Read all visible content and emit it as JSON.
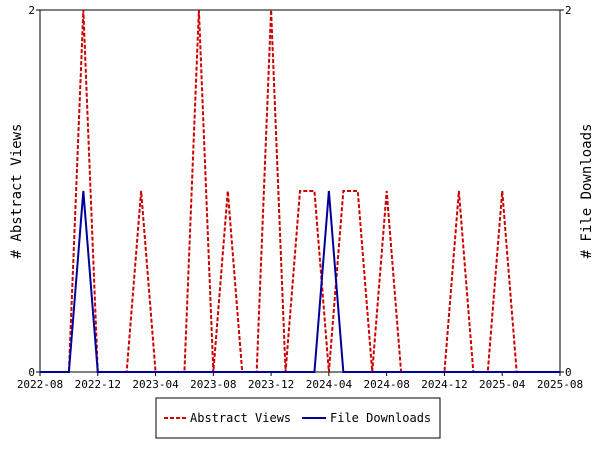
{
  "chart_data": {
    "type": "line",
    "title": "",
    "y_left_label": "# Abstract Views",
    "y_right_label": "# File Downloads",
    "y_left_range": [
      0,
      2
    ],
    "y_right_range": [
      0,
      2
    ],
    "y_left_ticks": [
      "0",
      "2"
    ],
    "y_right_ticks": [
      "0",
      "2"
    ],
    "x_range": [
      "2022-08",
      "2025-08"
    ],
    "x_ticks": [
      "2022-08",
      "2022-12",
      "2023-04",
      "2023-08",
      "2023-12",
      "2024-04",
      "2024-08",
      "2024-12",
      "2025-04",
      "2025-08"
    ],
    "grid": false,
    "legend_position": "bottom",
    "x": [
      "2022-08",
      "2022-09",
      "2022-10",
      "2022-11",
      "2022-12",
      "2023-01",
      "2023-02",
      "2023-03",
      "2023-04",
      "2023-05",
      "2023-06",
      "2023-07",
      "2023-08",
      "2023-09",
      "2023-10",
      "2023-11",
      "2023-12",
      "2024-01",
      "2024-02",
      "2024-03",
      "2024-04",
      "2024-05",
      "2024-06",
      "2024-07",
      "2024-08",
      "2024-09",
      "2024-10",
      "2024-11",
      "2024-12",
      "2025-01",
      "2025-02",
      "2025-03",
      "2025-04",
      "2025-05",
      "2025-06",
      "2025-07",
      "2025-08"
    ],
    "series": [
      {
        "name": "Abstract Views",
        "axis": "left",
        "color": "#cc0000",
        "dash": "dashed",
        "values": [
          0,
          0,
          0,
          2,
          0,
          0,
          0,
          1,
          0,
          0,
          0,
          2,
          0,
          1,
          0,
          0,
          2,
          0,
          1,
          1,
          0,
          1,
          1,
          0,
          1,
          0,
          0,
          0,
          0,
          1,
          0,
          0,
          1,
          0,
          0,
          0,
          0
        ]
      },
      {
        "name": "File Downloads",
        "axis": "right",
        "color": "#000099",
        "dash": "solid",
        "values": [
          0,
          0,
          0,
          1,
          0,
          0,
          0,
          0,
          0,
          0,
          0,
          0,
          0,
          0,
          0,
          0,
          0,
          0,
          0,
          0,
          1,
          0,
          0,
          0,
          0,
          0,
          0,
          0,
          0,
          0,
          0,
          0,
          0,
          0,
          0,
          0,
          0
        ]
      }
    ]
  }
}
